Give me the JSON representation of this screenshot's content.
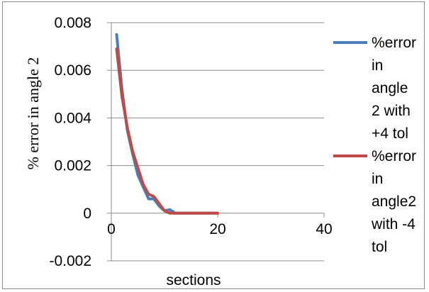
{
  "chart_data": {
    "type": "line",
    "xlabel": "sections",
    "ylabel": "% error in angle 2",
    "xlim": [
      0,
      40
    ],
    "ylim": [
      -0.002,
      0.008
    ],
    "x_ticks": [
      "0",
      "20",
      "40"
    ],
    "y_ticks": [
      "-0.002",
      "0",
      "0.002",
      "0.004",
      "0.006",
      "0.008"
    ],
    "grid": "horizontal",
    "legend_position": "right",
    "series": [
      {
        "name": "%error in angle 2 with +4 tol",
        "color": "#4a7ebb",
        "x": [
          1,
          2,
          3,
          4,
          5,
          6,
          7,
          8,
          9,
          10,
          11,
          12,
          13,
          14,
          15,
          16,
          17,
          18,
          19,
          20
        ],
        "y": [
          0.0075,
          0.0052,
          0.0035,
          0.0025,
          0.0016,
          0.0011,
          0.0006,
          0.0006,
          0.0003,
          0.0001,
          0.00015,
          0.0,
          0.0,
          0.0,
          0.0,
          0.0,
          0.0,
          0.0,
          0.0,
          0.0
        ]
      },
      {
        "name": "%error in angle2 with -4 tol",
        "color": "#be4b48",
        "x": [
          1,
          2,
          3,
          4,
          5,
          6,
          7,
          8,
          9,
          10,
          11,
          12,
          13,
          14,
          15,
          16,
          17,
          18,
          19,
          20
        ],
        "y": [
          0.0069,
          0.0049,
          0.0036,
          0.0026,
          0.0019,
          0.0012,
          0.0008,
          0.0007,
          0.0004,
          0.0001,
          0.0,
          0.0,
          0.0,
          0.0,
          0.0,
          0.0,
          0.0,
          0.0,
          0.0,
          0.0
        ]
      }
    ],
    "legend_lines": [
      [
        "%error",
        "in",
        "angle",
        "2 with",
        "+4 tol"
      ],
      [
        "%error",
        "in",
        "angle2",
        "with -4",
        "tol"
      ]
    ]
  }
}
